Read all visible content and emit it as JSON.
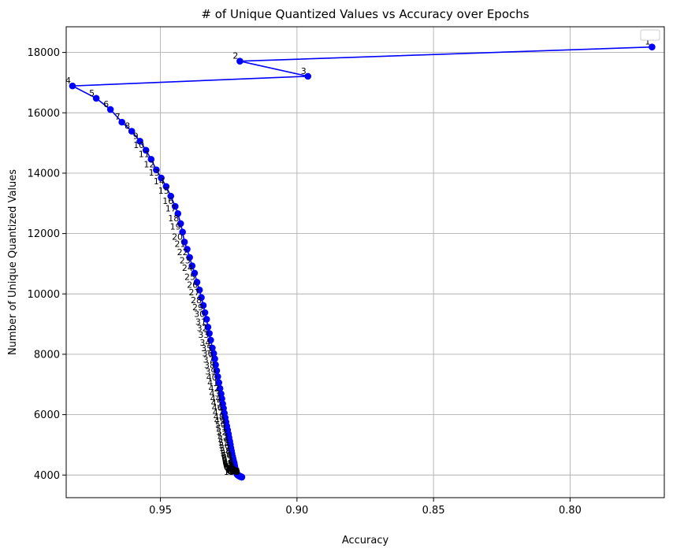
{
  "chart_data": {
    "type": "line",
    "title": "# of Unique Quantized Values vs Accuracy over Epochs",
    "xlabel": "Accuracy",
    "ylabel": "Number of Unique Quantized Values",
    "x_inverted": true,
    "xlim": [
      0.9845,
      0.7655
    ],
    "ylim": [
      3250,
      18850
    ],
    "xticks": [
      0.95,
      0.9,
      0.85,
      0.8,
      0.75
    ],
    "xtick_labels": [
      "0.95",
      "0.90",
      "0.85",
      "0.80",
      "0.75"
    ],
    "yticks": [
      4000,
      6000,
      8000,
      10000,
      12000,
      14000,
      16000,
      18000
    ],
    "ytick_labels": [
      "4000",
      "6000",
      "8000",
      "10000",
      "12000",
      "14000",
      "16000",
      "18000"
    ],
    "grid": true,
    "legend": "top-right",
    "line_color": "#0000ff",
    "series": [
      {
        "labels": [
          "1",
          "2",
          "3",
          "4",
          "5",
          "6",
          "7",
          "8",
          "9",
          "10",
          "11",
          "12",
          "13",
          "14",
          "15",
          "16",
          "17",
          "18",
          "19",
          "20",
          "21",
          "22",
          "23",
          "24",
          "25",
          "26",
          "27",
          "28",
          "29",
          "30",
          "31",
          "32",
          "33",
          "34",
          "35",
          "36",
          "37",
          "38",
          "39",
          "40",
          "41",
          "42",
          "43",
          "44",
          "45",
          "46",
          "47",
          "48",
          "49",
          "50",
          "51",
          "52",
          "53",
          "54",
          "55",
          "56",
          "57",
          "58",
          "59",
          "60",
          "61",
          "62",
          "63",
          "64",
          "65",
          "66",
          "67",
          "68",
          "69",
          "70",
          "71",
          "72",
          "73",
          "74",
          "75",
          "76",
          "77",
          "78",
          "79",
          "80",
          "81",
          "82",
          "83",
          "84",
          "85",
          "86",
          "87",
          "88",
          "89",
          "90",
          "91",
          "92",
          "93",
          "94",
          "95",
          "96",
          "97",
          "98",
          "99",
          "100"
        ],
        "x": [
          0.77,
          0.9209,
          0.896,
          0.9822,
          0.9735,
          0.9683,
          0.9641,
          0.9605,
          0.9575,
          0.9553,
          0.9534,
          0.9515,
          0.9497,
          0.9479,
          0.9462,
          0.9446,
          0.9436,
          0.9426,
          0.9419,
          0.9412,
          0.9402,
          0.9393,
          0.9384,
          0.9375,
          0.9366,
          0.9357,
          0.935,
          0.9343,
          0.9337,
          0.9331,
          0.9326,
          0.9321,
          0.9316,
          0.931,
          0.9305,
          0.9301,
          0.9298,
          0.9294,
          0.929,
          0.9286,
          0.9282,
          0.9278,
          0.9275,
          0.9272,
          0.9269,
          0.9266,
          0.9263,
          0.926,
          0.9257,
          0.9254,
          0.9251,
          0.9249,
          0.9246,
          0.9244,
          0.9242,
          0.924,
          0.9238,
          0.9236,
          0.9234,
          0.9232,
          0.923,
          0.9229,
          0.9228,
          0.9227,
          0.9226,
          0.9225,
          0.9224,
          0.9223,
          0.9222,
          0.9221,
          0.922,
          0.9219,
          0.9218,
          0.9217,
          0.9216,
          0.9215,
          0.9214,
          0.9213,
          0.9212,
          0.9212,
          0.9211,
          0.9211,
          0.921,
          0.921,
          0.9209,
          0.9209,
          0.9208,
          0.9208,
          0.9207,
          0.9207,
          0.9206,
          0.9206,
          0.9205,
          0.9205,
          0.9204,
          0.9204,
          0.9203,
          0.9203,
          0.9202,
          0.9202
        ],
        "y": [
          18180,
          17710,
          17210,
          16890,
          16480,
          16110,
          15690,
          15390,
          15060,
          14760,
          14460,
          14110,
          13840,
          13560,
          13240,
          12900,
          12660,
          12330,
          12050,
          11720,
          11480,
          11210,
          10930,
          10690,
          10390,
          10130,
          9880,
          9620,
          9380,
          9160,
          8900,
          8690,
          8470,
          8210,
          8030,
          7850,
          7650,
          7460,
          7260,
          7060,
          6870,
          6690,
          6530,
          6360,
          6210,
          6050,
          5900,
          5760,
          5620,
          5490,
          5360,
          5240,
          5120,
          5010,
          4900,
          4800,
          4710,
          4620,
          4540,
          4470,
          4400,
          4340,
          4290,
          4240,
          4200,
          4160,
          4130,
          4100,
          4080,
          4060,
          4040,
          4020,
          4010,
          4000,
          3995,
          3990,
          3985,
          3980,
          3975,
          3970,
          3968,
          3966,
          3964,
          3962,
          3960,
          3958,
          3956,
          3954,
          3952,
          3950,
          3948,
          3946,
          3944,
          3942,
          3940,
          3938,
          3936,
          3934,
          3932,
          3930
        ]
      }
    ]
  }
}
